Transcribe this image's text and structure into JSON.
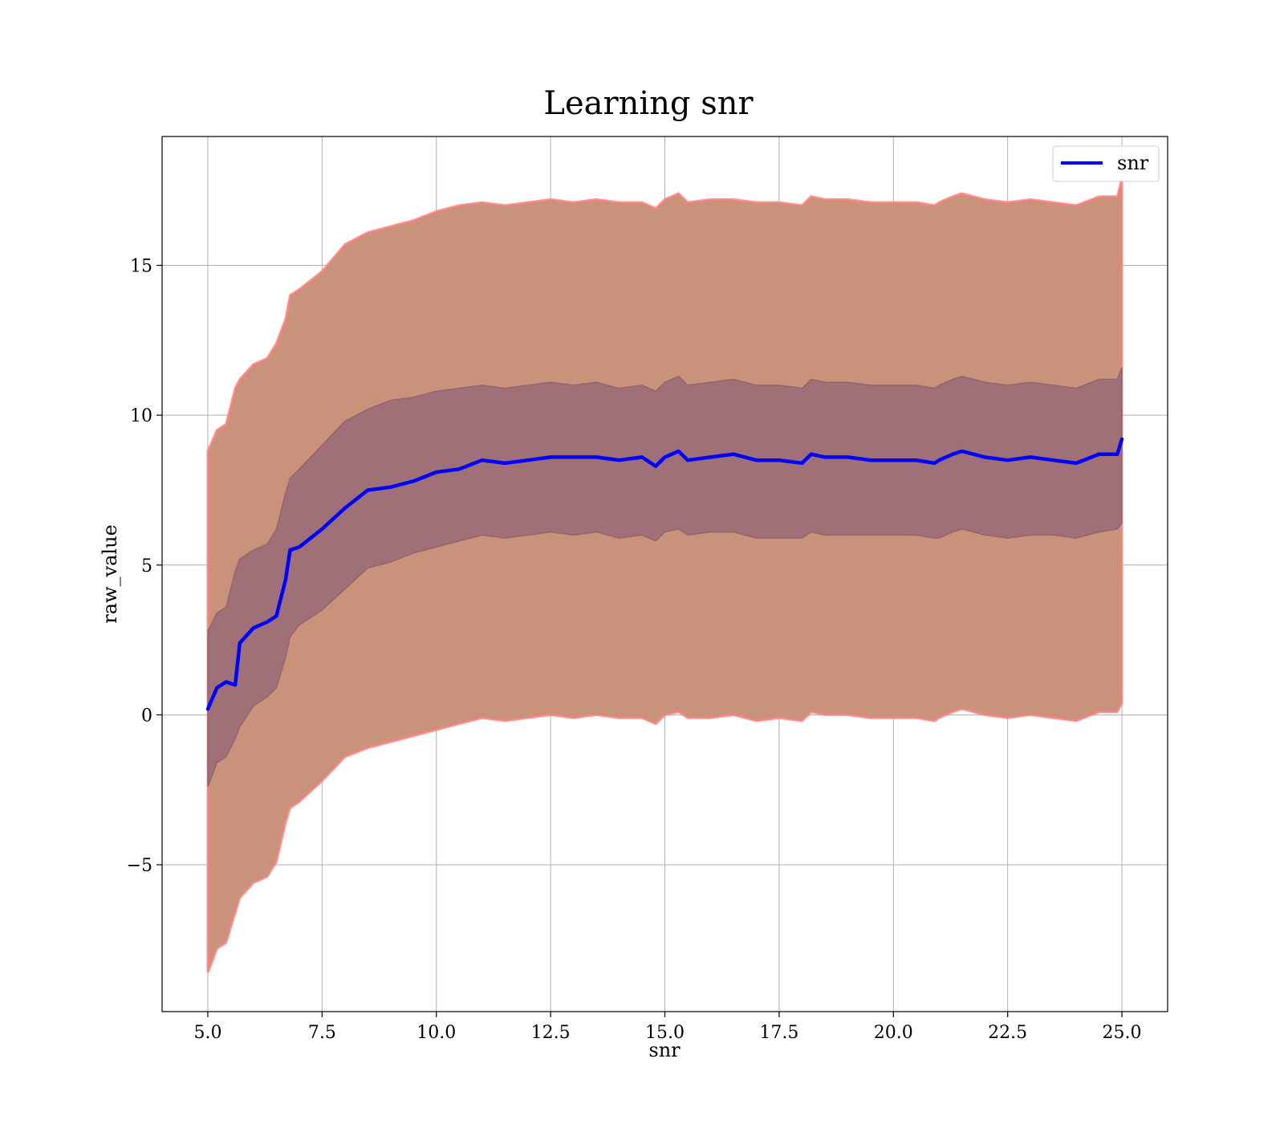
{
  "chart_data": {
    "type": "line",
    "title": "Learning snr",
    "xlabel": "snr",
    "ylabel": "raw_value",
    "xlim": [
      4.0,
      26.0
    ],
    "ylim": [
      -9.9,
      19.3
    ],
    "xticks": [
      "5.0",
      "7.5",
      "10.0",
      "12.5",
      "15.0",
      "17.5",
      "20.0",
      "22.5",
      "25.0"
    ],
    "xtick_values": [
      5.0,
      7.5,
      10.0,
      12.5,
      15.0,
      17.5,
      20.0,
      22.5,
      25.0
    ],
    "yticks": [
      "−5",
      "0",
      "5",
      "10",
      "15"
    ],
    "ytick_values": [
      -5,
      0,
      5,
      10,
      15
    ],
    "grid": true,
    "legend": {
      "placement": "top-right",
      "entries": [
        "snr"
      ]
    },
    "colors": {
      "line": "#0000ff",
      "outer_band": "#c8937a",
      "outer_band_edge": "#ff8080",
      "inner_band": "#a07078",
      "grid": "#b0b0b0"
    },
    "x": [
      5.0,
      5.2,
      5.4,
      5.6,
      5.7,
      6.0,
      6.3,
      6.5,
      6.7,
      6.8,
      7.0,
      7.5,
      8.0,
      8.5,
      9.0,
      9.5,
      10.0,
      10.5,
      11.0,
      11.5,
      12.0,
      12.5,
      13.0,
      13.5,
      14.0,
      14.5,
      14.8,
      15.0,
      15.3,
      15.5,
      16.0,
      16.5,
      17.0,
      17.5,
      18.0,
      18.2,
      18.5,
      19.0,
      19.5,
      20.0,
      20.5,
      20.9,
      21.0,
      21.3,
      21.5,
      22.0,
      22.5,
      23.0,
      23.5,
      24.0,
      24.5,
      24.9,
      25.0
    ],
    "series": [
      {
        "name": "snr",
        "values": [
          0.2,
          0.9,
          1.1,
          1.0,
          2.4,
          2.9,
          3.1,
          3.3,
          4.5,
          5.5,
          5.6,
          6.2,
          6.9,
          7.5,
          7.6,
          7.8,
          8.1,
          8.2,
          8.5,
          8.4,
          8.5,
          8.6,
          8.6,
          8.6,
          8.5,
          8.6,
          8.3,
          8.6,
          8.8,
          8.5,
          8.6,
          8.7,
          8.5,
          8.5,
          8.4,
          8.7,
          8.6,
          8.6,
          8.5,
          8.5,
          8.5,
          8.4,
          8.5,
          8.7,
          8.8,
          8.6,
          8.5,
          8.6,
          8.5,
          8.4,
          8.7,
          8.7,
          9.2
        ]
      }
    ],
    "inner_band": {
      "upper": [
        2.8,
        3.4,
        3.6,
        4.8,
        5.2,
        5.5,
        5.7,
        6.2,
        7.4,
        7.9,
        8.2,
        9.0,
        9.8,
        10.2,
        10.5,
        10.6,
        10.8,
        10.9,
        11.0,
        10.9,
        11.0,
        11.1,
        11.0,
        11.1,
        10.9,
        11.0,
        10.8,
        11.1,
        11.3,
        11.0,
        11.1,
        11.2,
        11.0,
        11.0,
        10.9,
        11.2,
        11.1,
        11.1,
        11.0,
        11.0,
        11.0,
        10.9,
        11.0,
        11.2,
        11.3,
        11.1,
        11.0,
        11.1,
        11.0,
        10.9,
        11.2,
        11.2,
        11.6
      ],
      "lower": [
        -2.4,
        -1.6,
        -1.4,
        -0.8,
        -0.4,
        0.3,
        0.6,
        0.9,
        1.9,
        2.6,
        3.0,
        3.5,
        4.2,
        4.9,
        5.1,
        5.4,
        5.6,
        5.8,
        6.0,
        5.9,
        6.0,
        6.1,
        6.0,
        6.1,
        5.9,
        6.0,
        5.8,
        6.1,
        6.2,
        6.0,
        6.1,
        6.1,
        5.9,
        5.9,
        5.9,
        6.1,
        6.0,
        6.0,
        6.0,
        6.0,
        6.0,
        5.9,
        5.9,
        6.1,
        6.2,
        6.0,
        5.9,
        6.0,
        6.0,
        5.9,
        6.1,
        6.2,
        6.4
      ]
    },
    "outer_band": {
      "upper": [
        8.8,
        9.5,
        9.7,
        10.9,
        11.2,
        11.7,
        11.9,
        12.4,
        13.2,
        14.0,
        14.2,
        14.8,
        15.7,
        16.1,
        16.3,
        16.5,
        16.8,
        17.0,
        17.1,
        17.0,
        17.1,
        17.2,
        17.1,
        17.2,
        17.1,
        17.1,
        16.9,
        17.2,
        17.4,
        17.1,
        17.2,
        17.2,
        17.1,
        17.1,
        17.0,
        17.3,
        17.2,
        17.2,
        17.1,
        17.1,
        17.1,
        17.0,
        17.1,
        17.3,
        17.4,
        17.2,
        17.1,
        17.2,
        17.1,
        17.0,
        17.3,
        17.3,
        17.9
      ],
      "lower": [
        -8.6,
        -7.8,
        -7.6,
        -6.6,
        -6.1,
        -5.6,
        -5.4,
        -4.9,
        -3.6,
        -3.1,
        -2.9,
        -2.2,
        -1.4,
        -1.1,
        -0.9,
        -0.7,
        -0.5,
        -0.3,
        -0.1,
        -0.2,
        -0.1,
        0.0,
        -0.1,
        0.0,
        -0.1,
        -0.1,
        -0.3,
        0.0,
        0.1,
        -0.1,
        -0.1,
        0.0,
        -0.2,
        -0.1,
        -0.2,
        0.1,
        0.0,
        0.0,
        -0.1,
        -0.1,
        -0.1,
        -0.2,
        -0.1,
        0.1,
        0.2,
        0.0,
        -0.1,
        0.0,
        -0.1,
        -0.2,
        0.1,
        0.1,
        0.4
      ]
    }
  }
}
